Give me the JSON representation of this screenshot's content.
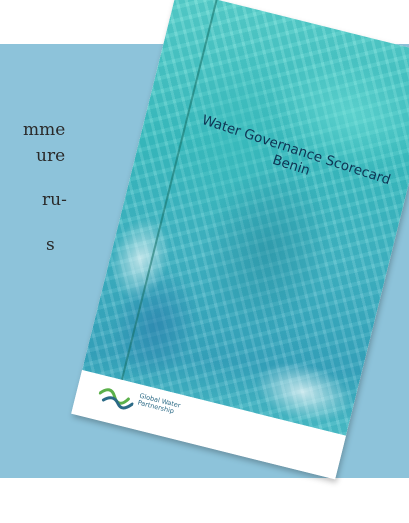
{
  "background_text": {
    "line1": "mme",
    "line2": "ure",
    "line3": "ru-",
    "line4": "s"
  },
  "booklet": {
    "title_line1": "Water Governance Scorecard",
    "title_line2": "Benin",
    "publisher_line1": "Global Water",
    "publisher_line2": "Partnership"
  },
  "colors": {
    "panel": "#8dc3da",
    "cover_teal": "#3ec1c2",
    "title_text": "#0f3554",
    "logo_green": "#5bb04a",
    "logo_blue": "#2b6a86"
  },
  "icons": {
    "publisher_logo": "wave-logo-icon"
  }
}
